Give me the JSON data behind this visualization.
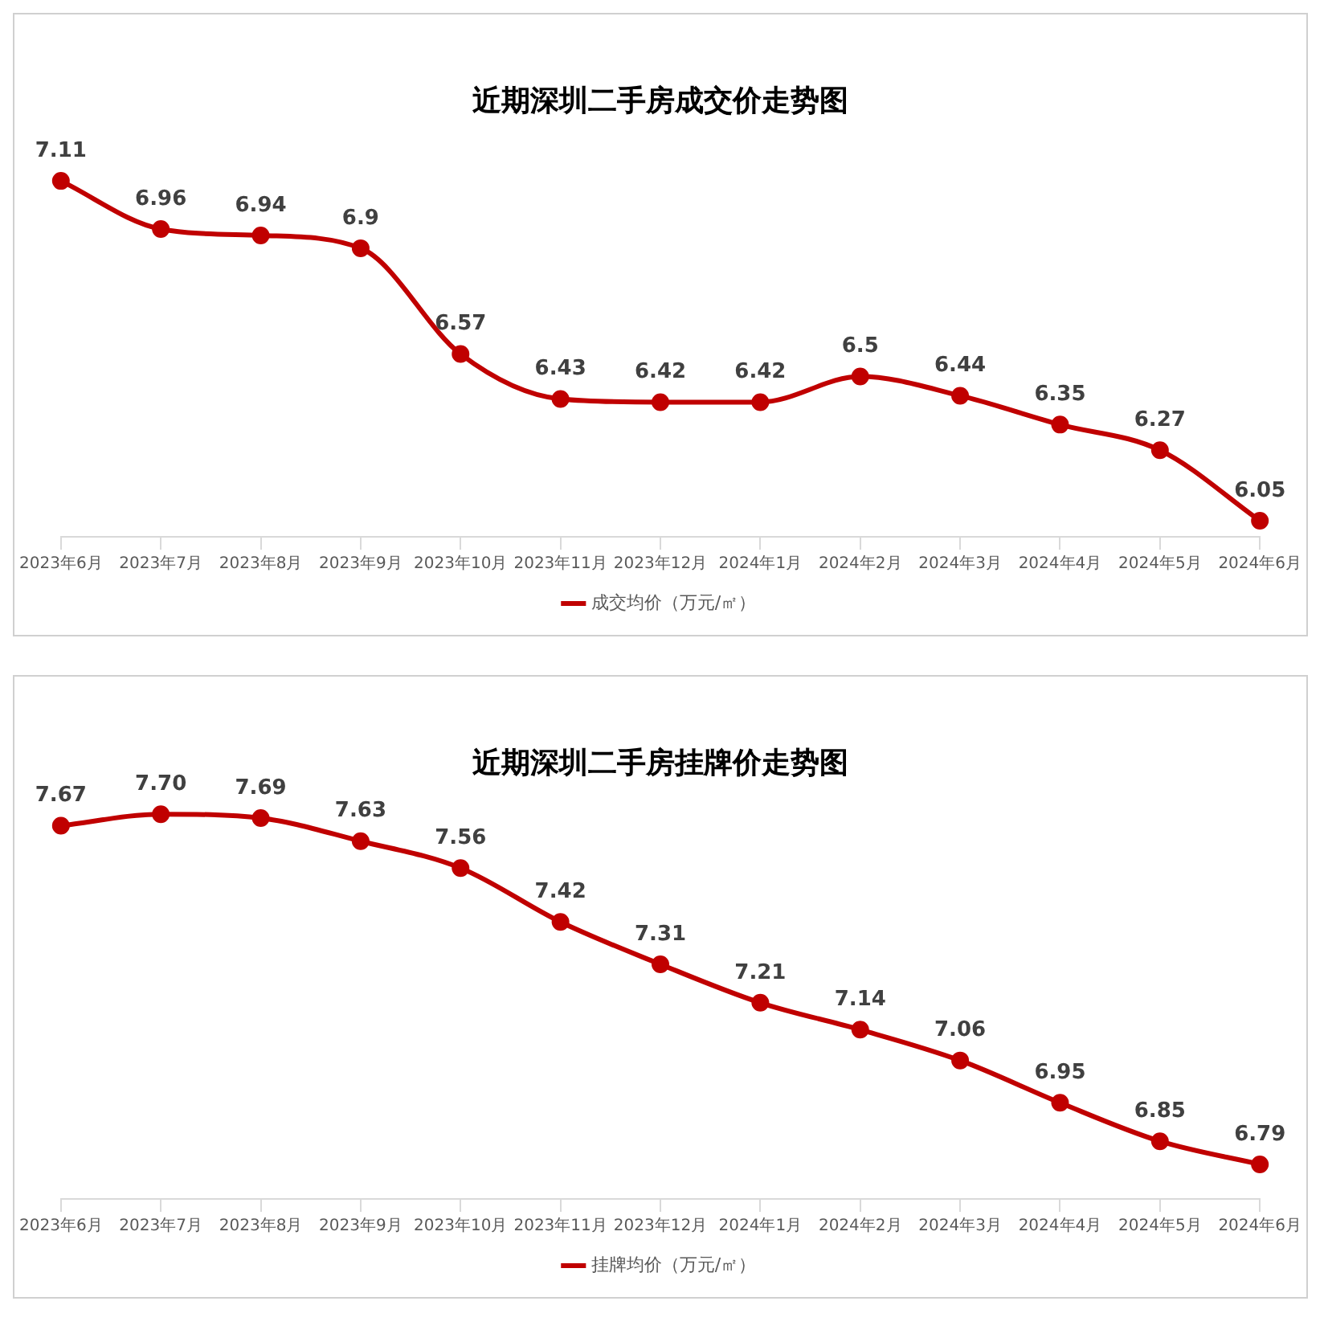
{
  "chart_data": [
    {
      "type": "line",
      "title": "近期深圳二手房成交价走势图",
      "categories": [
        "2023年6月",
        "2023年7月",
        "2023年8月",
        "2023年9月",
        "2023年10月",
        "2023年11月",
        "2023年12月",
        "2024年1月",
        "2024年2月",
        "2024年3月",
        "2024年4月",
        "2024年5月",
        "2024年6月"
      ],
      "series": [
        {
          "name": "成交均价（万元/㎡）",
          "color": "#c00000",
          "values": [
            7.11,
            6.96,
            6.94,
            6.9,
            6.57,
            6.43,
            6.42,
            6.42,
            6.5,
            6.44,
            6.35,
            6.27,
            6.05
          ]
        }
      ],
      "tick_labels": "x",
      "data_labels": true,
      "legend": "bottom",
      "marker": "circle",
      "line_style": "solid"
    },
    {
      "type": "line",
      "title": "近期深圳二手房挂牌价走势图",
      "categories": [
        "2023年6月",
        "2023年7月",
        "2023年8月",
        "2023年9月",
        "2023年10月",
        "2023年11月",
        "2023年12月",
        "2024年1月",
        "2024年2月",
        "2024年3月",
        "2024年4月",
        "2024年5月",
        "2024年6月"
      ],
      "series": [
        {
          "name": "挂牌均价（万元/㎡）",
          "color": "#c00000",
          "values": [
            7.67,
            7.7,
            7.69,
            7.63,
            7.56,
            7.42,
            7.31,
            7.21,
            7.14,
            7.06,
            6.95,
            6.85,
            6.79
          ],
          "value_labels": [
            "7.67",
            "7.70",
            "7.69",
            "7.63",
            "7.56",
            "7.42",
            "7.31",
            "7.21",
            "7.14",
            "7.06",
            "6.95",
            "6.85",
            "6.79"
          ]
        }
      ],
      "tick_labels": "x",
      "legend": "bottom",
      "marker": "circle",
      "line_style": "solid"
    }
  ]
}
